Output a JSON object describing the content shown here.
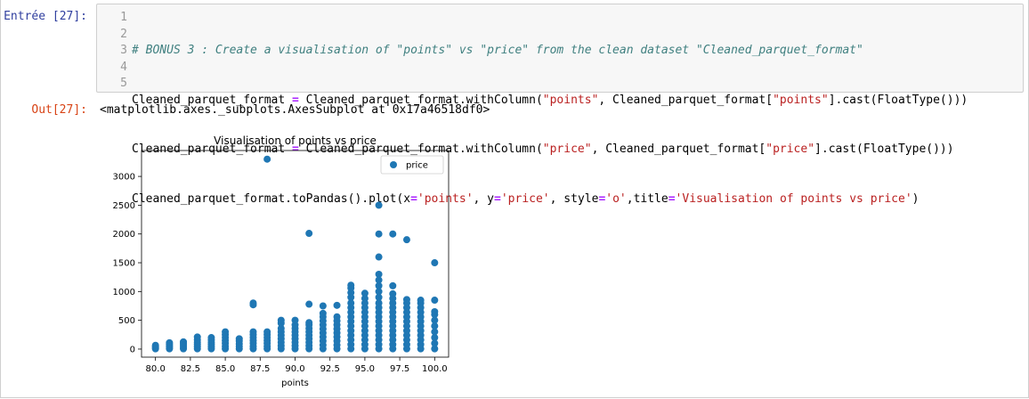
{
  "cell": {
    "in_prompt": "Entrée [27]:",
    "out_prompt": "Out[27]:",
    "line_numbers": [
      "1",
      "2",
      "3",
      "4",
      "5"
    ],
    "code": {
      "line1": "# BONUS 3 : Create a visualisation of \"points\" vs \"price\" from the clean dataset \"Cleaned_parquet_format\"",
      "line2": {
        "a": "Cleaned_parquet_format ",
        "op": "=",
        "b": " Cleaned_parquet_format.withColumn(",
        "s1": "\"points\"",
        "c": ", Cleaned_parquet_format[",
        "s2": "\"points\"",
        "d": "].cast(FloatType()))"
      },
      "line3": {
        "a": "Cleaned_parquet_format ",
        "op": "=",
        "b": " Cleaned_parquet_format.withColumn(",
        "s1": "\"price\"",
        "c": ", Cleaned_parquet_format[",
        "s2": "\"price\"",
        "d": "].cast(FloatType()))"
      },
      "line4": {
        "a": "Cleaned_parquet_format.toPandas().plot(x",
        "op1": "=",
        "s1": "'points'",
        "b": ", y",
        "op2": "=",
        "s2": "'price'",
        "c": ", style",
        "op3": "=",
        "s3": "'o'",
        "d": ",title",
        "op4": "=",
        "s4": "'Visualisation of points vs price'",
        "e": ")"
      },
      "line5": ""
    },
    "output_text": "<matplotlib.axes._subplots.AxesSubplot at 0x17a46518df0>"
  },
  "chart_data": {
    "type": "scatter",
    "title": "Visualisation of points vs price",
    "xlabel": "points",
    "ylabel": "",
    "xlim": [
      79.0,
      101.0
    ],
    "ylim": [
      -140,
      3450
    ],
    "xticks": [
      80.0,
      82.5,
      85.0,
      87.5,
      90.0,
      92.5,
      95.0,
      97.5,
      100.0
    ],
    "xtick_labels": [
      "80.0",
      "82.5",
      "85.0",
      "87.5",
      "90.0",
      "92.5",
      "95.0",
      "97.5",
      "100.0"
    ],
    "yticks": [
      0,
      500,
      1000,
      1500,
      2000,
      2500,
      3000
    ],
    "ytick_labels": [
      "0",
      "500",
      "1000",
      "1500",
      "2000",
      "2500",
      "3000"
    ],
    "legend": {
      "position": "top-right",
      "entries": [
        "price"
      ]
    },
    "series": [
      {
        "name": "price",
        "color": "#1f77b4",
        "points": [
          {
            "x": 80,
            "y": 5
          },
          {
            "x": 80,
            "y": 25
          },
          {
            "x": 80,
            "y": 45
          },
          {
            "x": 80,
            "y": 65
          },
          {
            "x": 81,
            "y": 5
          },
          {
            "x": 81,
            "y": 30
          },
          {
            "x": 81,
            "y": 55
          },
          {
            "x": 81,
            "y": 80
          },
          {
            "x": 81,
            "y": 110
          },
          {
            "x": 82,
            "y": 5
          },
          {
            "x": 82,
            "y": 35
          },
          {
            "x": 82,
            "y": 65
          },
          {
            "x": 82,
            "y": 95
          },
          {
            "x": 82,
            "y": 125
          },
          {
            "x": 83,
            "y": 5
          },
          {
            "x": 83,
            "y": 40
          },
          {
            "x": 83,
            "y": 80
          },
          {
            "x": 83,
            "y": 120
          },
          {
            "x": 83,
            "y": 160
          },
          {
            "x": 83,
            "y": 210
          },
          {
            "x": 84,
            "y": 5
          },
          {
            "x": 84,
            "y": 40
          },
          {
            "x": 84,
            "y": 80
          },
          {
            "x": 84,
            "y": 120
          },
          {
            "x": 84,
            "y": 160
          },
          {
            "x": 84,
            "y": 200
          },
          {
            "x": 85,
            "y": 5
          },
          {
            "x": 85,
            "y": 50
          },
          {
            "x": 85,
            "y": 100
          },
          {
            "x": 85,
            "y": 150
          },
          {
            "x": 85,
            "y": 200
          },
          {
            "x": 85,
            "y": 250
          },
          {
            "x": 85,
            "y": 300
          },
          {
            "x": 86,
            "y": 5
          },
          {
            "x": 86,
            "y": 45
          },
          {
            "x": 86,
            "y": 90
          },
          {
            "x": 86,
            "y": 140
          },
          {
            "x": 86,
            "y": 180
          },
          {
            "x": 87,
            "y": 5
          },
          {
            "x": 87,
            "y": 50
          },
          {
            "x": 87,
            "y": 100
          },
          {
            "x": 87,
            "y": 150
          },
          {
            "x": 87,
            "y": 200
          },
          {
            "x": 87,
            "y": 250
          },
          {
            "x": 87,
            "y": 300
          },
          {
            "x": 87,
            "y": 770
          },
          {
            "x": 87,
            "y": 800
          },
          {
            "x": 88,
            "y": 5
          },
          {
            "x": 88,
            "y": 50
          },
          {
            "x": 88,
            "y": 100
          },
          {
            "x": 88,
            "y": 150
          },
          {
            "x": 88,
            "y": 200
          },
          {
            "x": 88,
            "y": 250
          },
          {
            "x": 88,
            "y": 300
          },
          {
            "x": 88,
            "y": 3300
          },
          {
            "x": 89,
            "y": 5
          },
          {
            "x": 89,
            "y": 60
          },
          {
            "x": 89,
            "y": 120
          },
          {
            "x": 89,
            "y": 180
          },
          {
            "x": 89,
            "y": 240
          },
          {
            "x": 89,
            "y": 300
          },
          {
            "x": 89,
            "y": 360
          },
          {
            "x": 89,
            "y": 450
          },
          {
            "x": 89,
            "y": 500
          },
          {
            "x": 90,
            "y": 5
          },
          {
            "x": 90,
            "y": 60
          },
          {
            "x": 90,
            "y": 120
          },
          {
            "x": 90,
            "y": 180
          },
          {
            "x": 90,
            "y": 240
          },
          {
            "x": 90,
            "y": 300
          },
          {
            "x": 90,
            "y": 360
          },
          {
            "x": 90,
            "y": 420
          },
          {
            "x": 90,
            "y": 500
          },
          {
            "x": 91,
            "y": 5
          },
          {
            "x": 91,
            "y": 60
          },
          {
            "x": 91,
            "y": 120
          },
          {
            "x": 91,
            "y": 180
          },
          {
            "x": 91,
            "y": 240
          },
          {
            "x": 91,
            "y": 300
          },
          {
            "x": 91,
            "y": 360
          },
          {
            "x": 91,
            "y": 420
          },
          {
            "x": 91,
            "y": 460
          },
          {
            "x": 91,
            "y": 780
          },
          {
            "x": 91,
            "y": 2010
          },
          {
            "x": 92,
            "y": 5
          },
          {
            "x": 92,
            "y": 70
          },
          {
            "x": 92,
            "y": 140
          },
          {
            "x": 92,
            "y": 210
          },
          {
            "x": 92,
            "y": 280
          },
          {
            "x": 92,
            "y": 350
          },
          {
            "x": 92,
            "y": 420
          },
          {
            "x": 92,
            "y": 490
          },
          {
            "x": 92,
            "y": 560
          },
          {
            "x": 92,
            "y": 620
          },
          {
            "x": 92,
            "y": 750
          },
          {
            "x": 93,
            "y": 5
          },
          {
            "x": 93,
            "y": 70
          },
          {
            "x": 93,
            "y": 140
          },
          {
            "x": 93,
            "y": 210
          },
          {
            "x": 93,
            "y": 280
          },
          {
            "x": 93,
            "y": 350
          },
          {
            "x": 93,
            "y": 420
          },
          {
            "x": 93,
            "y": 490
          },
          {
            "x": 93,
            "y": 560
          },
          {
            "x": 93,
            "y": 760
          },
          {
            "x": 94,
            "y": 5
          },
          {
            "x": 94,
            "y": 80
          },
          {
            "x": 94,
            "y": 160
          },
          {
            "x": 94,
            "y": 240
          },
          {
            "x": 94,
            "y": 320
          },
          {
            "x": 94,
            "y": 400
          },
          {
            "x": 94,
            "y": 480
          },
          {
            "x": 94,
            "y": 560
          },
          {
            "x": 94,
            "y": 640
          },
          {
            "x": 94,
            "y": 720
          },
          {
            "x": 94,
            "y": 800
          },
          {
            "x": 94,
            "y": 900
          },
          {
            "x": 94,
            "y": 980
          },
          {
            "x": 94,
            "y": 1060
          },
          {
            "x": 94,
            "y": 1110
          },
          {
            "x": 95,
            "y": 5
          },
          {
            "x": 95,
            "y": 80
          },
          {
            "x": 95,
            "y": 160
          },
          {
            "x": 95,
            "y": 240
          },
          {
            "x": 95,
            "y": 320
          },
          {
            "x": 95,
            "y": 400
          },
          {
            "x": 95,
            "y": 480
          },
          {
            "x": 95,
            "y": 560
          },
          {
            "x": 95,
            "y": 640
          },
          {
            "x": 95,
            "y": 720
          },
          {
            "x": 95,
            "y": 800
          },
          {
            "x": 95,
            "y": 880
          },
          {
            "x": 95,
            "y": 970
          },
          {
            "x": 96,
            "y": 5
          },
          {
            "x": 96,
            "y": 80
          },
          {
            "x": 96,
            "y": 160
          },
          {
            "x": 96,
            "y": 240
          },
          {
            "x": 96,
            "y": 320
          },
          {
            "x": 96,
            "y": 400
          },
          {
            "x": 96,
            "y": 480
          },
          {
            "x": 96,
            "y": 560
          },
          {
            "x": 96,
            "y": 640
          },
          {
            "x": 96,
            "y": 720
          },
          {
            "x": 96,
            "y": 800
          },
          {
            "x": 96,
            "y": 900
          },
          {
            "x": 96,
            "y": 1000
          },
          {
            "x": 96,
            "y": 1100
          },
          {
            "x": 96,
            "y": 1200
          },
          {
            "x": 96,
            "y": 1300
          },
          {
            "x": 96,
            "y": 1600
          },
          {
            "x": 96,
            "y": 2000
          },
          {
            "x": 96,
            "y": 2500
          },
          {
            "x": 97,
            "y": 5
          },
          {
            "x": 97,
            "y": 80
          },
          {
            "x": 97,
            "y": 160
          },
          {
            "x": 97,
            "y": 240
          },
          {
            "x": 97,
            "y": 320
          },
          {
            "x": 97,
            "y": 400
          },
          {
            "x": 97,
            "y": 480
          },
          {
            "x": 97,
            "y": 560
          },
          {
            "x": 97,
            "y": 640
          },
          {
            "x": 97,
            "y": 720
          },
          {
            "x": 97,
            "y": 800
          },
          {
            "x": 97,
            "y": 880
          },
          {
            "x": 97,
            "y": 960
          },
          {
            "x": 97,
            "y": 1100
          },
          {
            "x": 97,
            "y": 2000
          },
          {
            "x": 98,
            "y": 5
          },
          {
            "x": 98,
            "y": 80
          },
          {
            "x": 98,
            "y": 160
          },
          {
            "x": 98,
            "y": 240
          },
          {
            "x": 98,
            "y": 320
          },
          {
            "x": 98,
            "y": 400
          },
          {
            "x": 98,
            "y": 480
          },
          {
            "x": 98,
            "y": 560
          },
          {
            "x": 98,
            "y": 640
          },
          {
            "x": 98,
            "y": 720
          },
          {
            "x": 98,
            "y": 800
          },
          {
            "x": 98,
            "y": 860
          },
          {
            "x": 98,
            "y": 1900
          },
          {
            "x": 99,
            "y": 5
          },
          {
            "x": 99,
            "y": 80
          },
          {
            "x": 99,
            "y": 160
          },
          {
            "x": 99,
            "y": 240
          },
          {
            "x": 99,
            "y": 320
          },
          {
            "x": 99,
            "y": 400
          },
          {
            "x": 99,
            "y": 480
          },
          {
            "x": 99,
            "y": 560
          },
          {
            "x": 99,
            "y": 640
          },
          {
            "x": 99,
            "y": 720
          },
          {
            "x": 99,
            "y": 800
          },
          {
            "x": 99,
            "y": 850
          },
          {
            "x": 100,
            "y": 5
          },
          {
            "x": 100,
            "y": 100
          },
          {
            "x": 100,
            "y": 200
          },
          {
            "x": 100,
            "y": 300
          },
          {
            "x": 100,
            "y": 400
          },
          {
            "x": 100,
            "y": 500
          },
          {
            "x": 100,
            "y": 600
          },
          {
            "x": 100,
            "y": 650
          },
          {
            "x": 100,
            "y": 850
          },
          {
            "x": 100,
            "y": 1500
          }
        ]
      }
    ]
  }
}
